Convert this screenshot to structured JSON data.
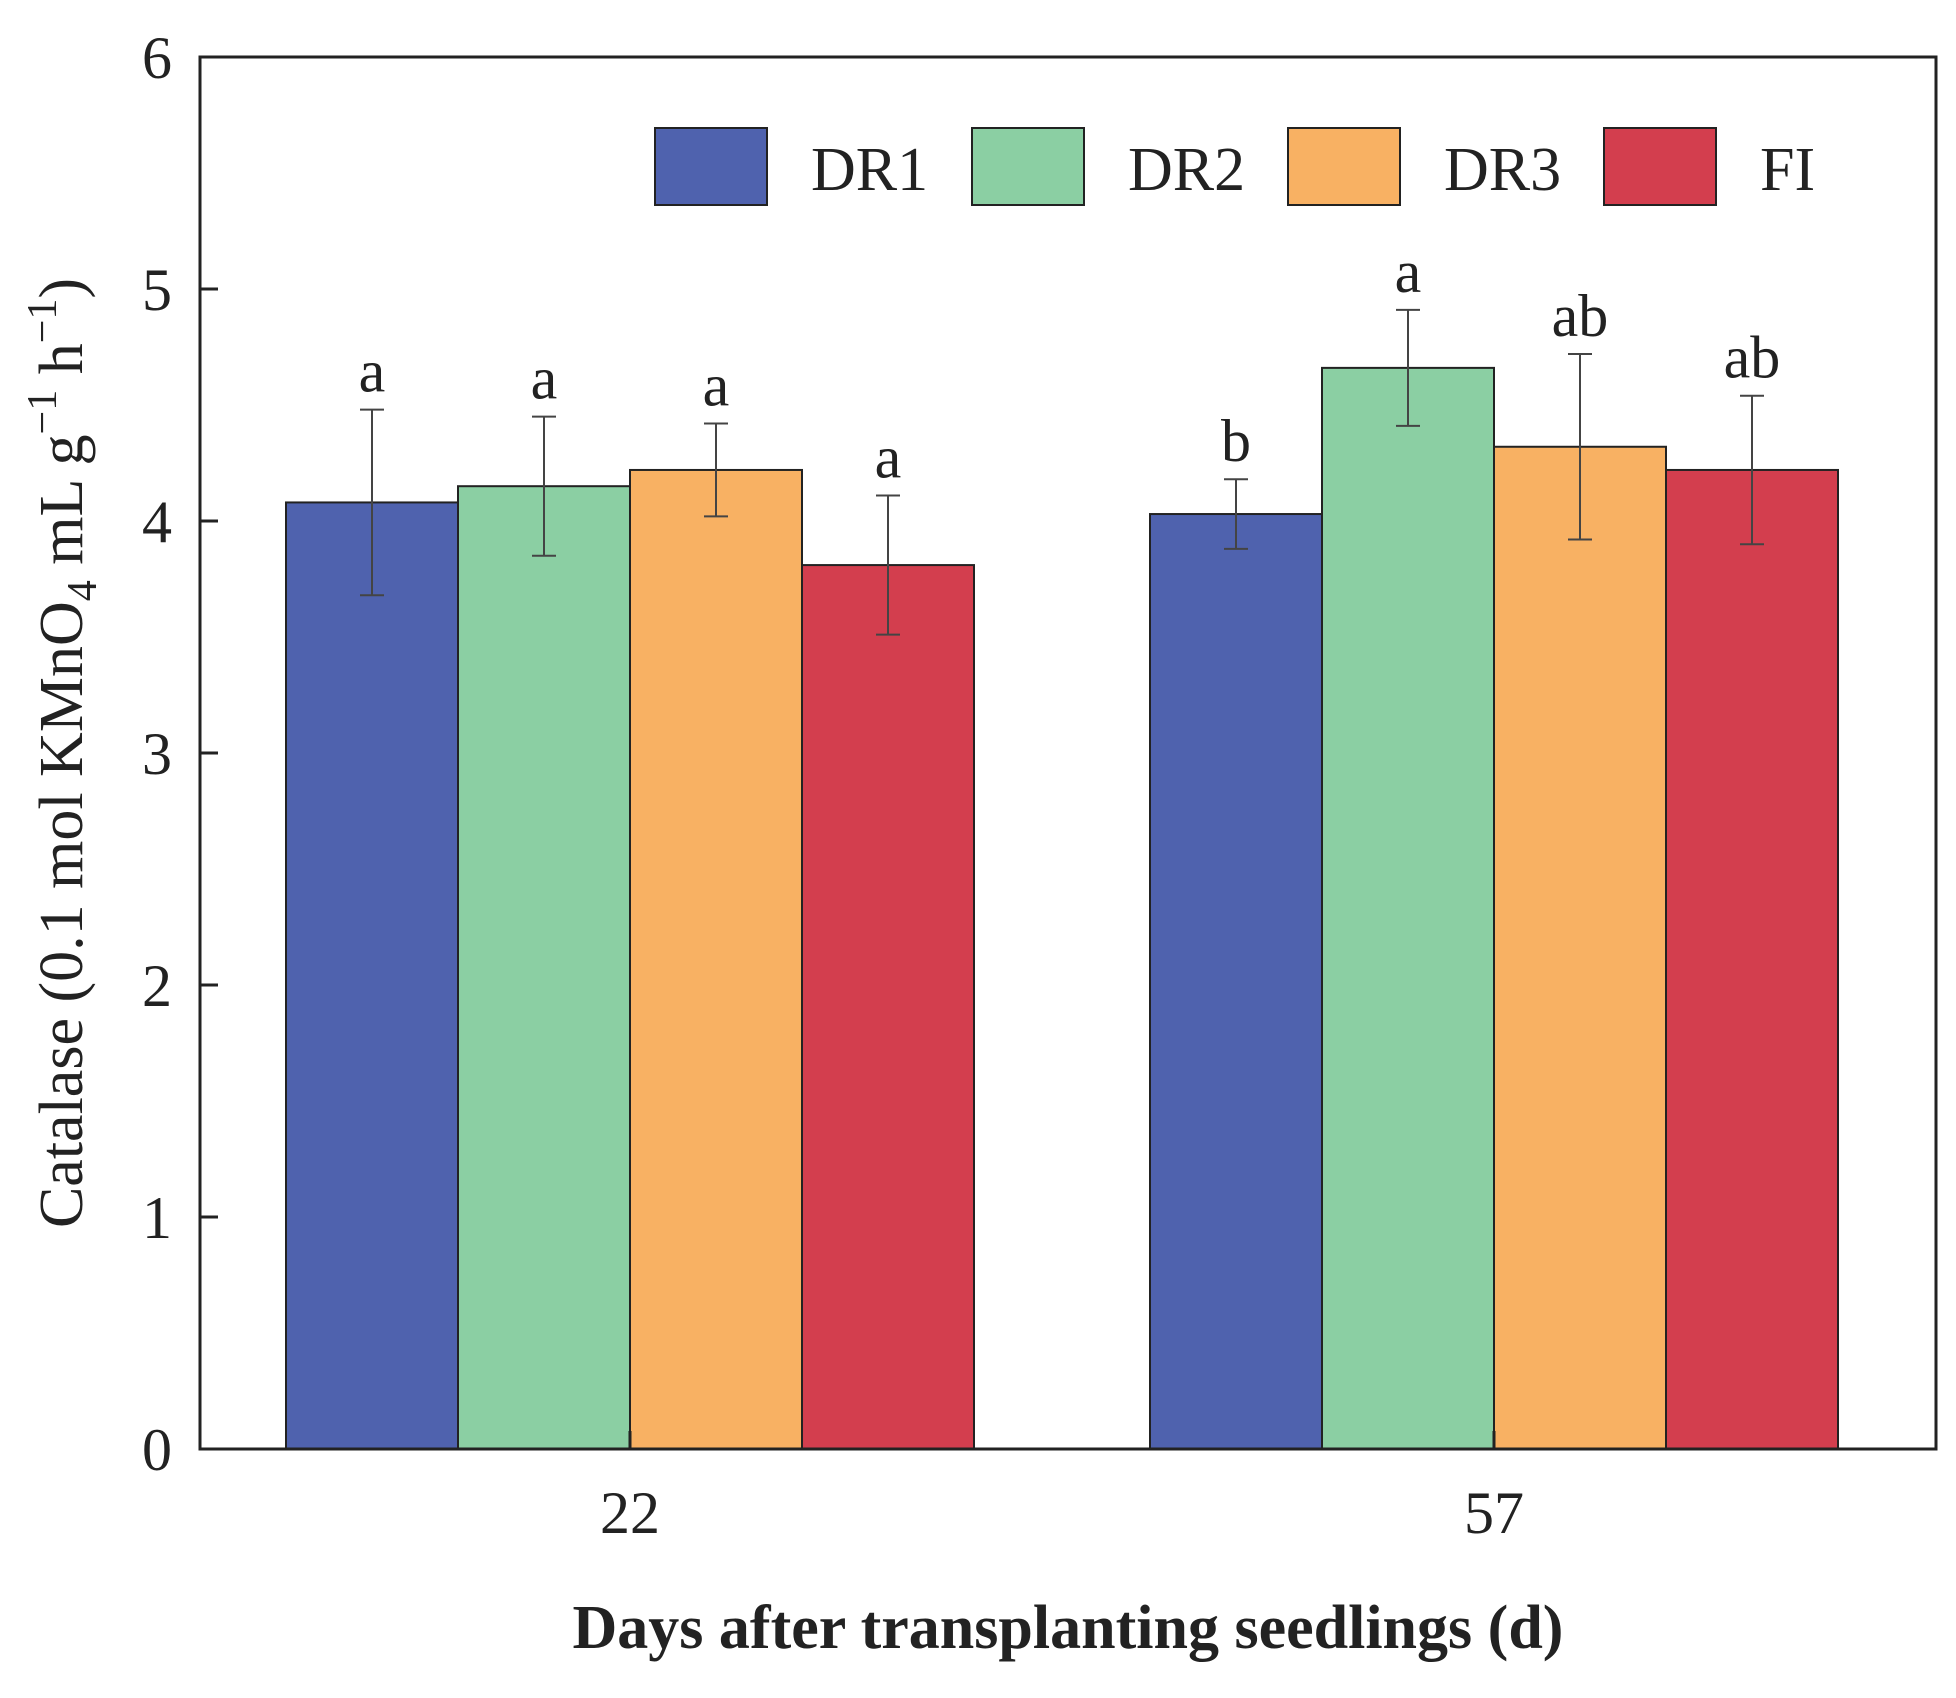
{
  "chart_data": {
    "type": "bar",
    "title": "",
    "xlabel": "Days after transplanting seedlings (d)",
    "ylabel": {
      "parts": [
        "Catalase (0.1 mol KMnO",
        "4",
        " mL g",
        "−1",
        " h",
        "−1",
        ")"
      ]
    },
    "categories": [
      "22",
      "57"
    ],
    "ylim": [
      0,
      6
    ],
    "yticks": [
      "0",
      "1",
      "2",
      "3",
      "4",
      "5",
      "6"
    ],
    "grid": false,
    "legend_position": "top-right",
    "series": [
      {
        "name": "DR1",
        "color": "#4F62AE",
        "values": [
          4.08,
          4.03
        ],
        "errors": [
          0.4,
          0.15
        ],
        "labels": [
          "a",
          "b"
        ]
      },
      {
        "name": "DR2",
        "color": "#8BCFA3",
        "values": [
          4.15,
          4.66
        ],
        "errors": [
          0.3,
          0.25
        ],
        "labels": [
          "a",
          "a"
        ]
      },
      {
        "name": "DR3",
        "color": "#F8B163",
        "values": [
          4.22,
          4.32
        ],
        "errors": [
          0.2,
          0.4
        ],
        "labels": [
          "a",
          "ab"
        ]
      },
      {
        "name": "FI",
        "color": "#D33E4E",
        "values": [
          3.81,
          4.22
        ],
        "errors": [
          0.3,
          0.32
        ],
        "labels": [
          "a",
          "ab"
        ]
      }
    ]
  }
}
